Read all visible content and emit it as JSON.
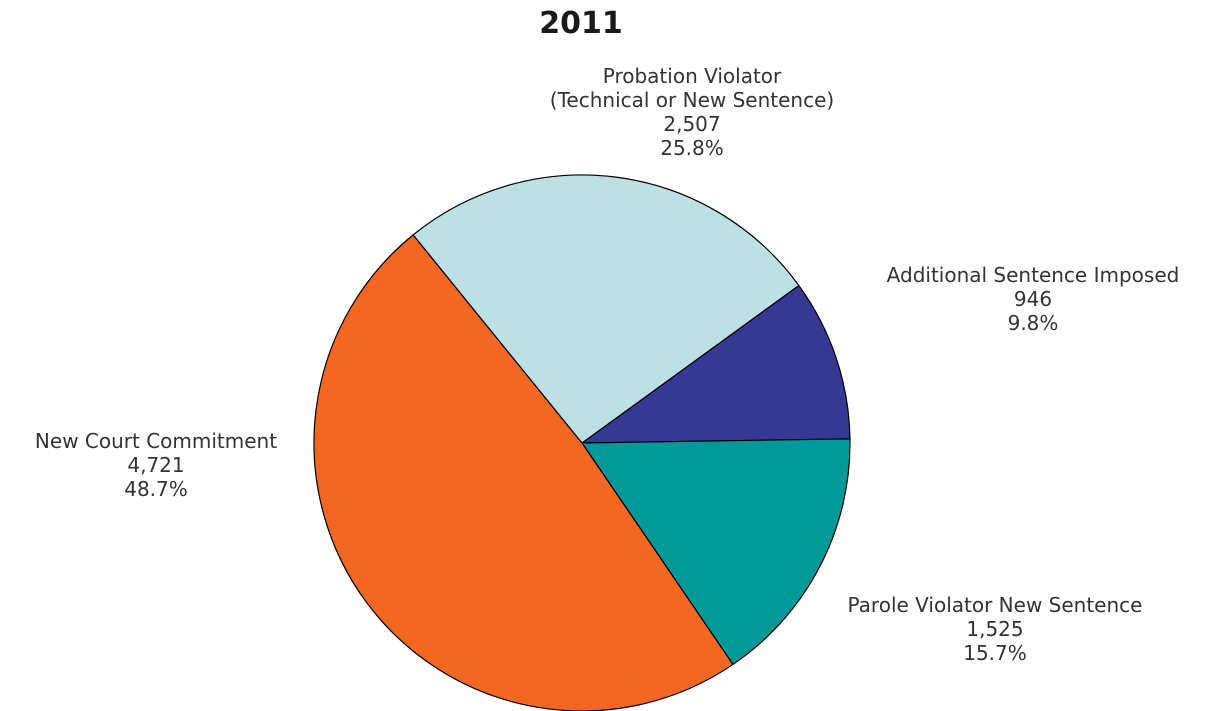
{
  "chart_data": {
    "type": "pie",
    "title": "2011",
    "start_angle_deg": -36,
    "direction": "clockwise",
    "slices": [
      {
        "label_lines": [
          "Additional Sentence Imposed"
        ],
        "value": 946,
        "value_text": "946",
        "percent": 9.8,
        "percent_text": "9.8%",
        "color": "#353993"
      },
      {
        "label_lines": [
          "Parole Violator New Sentence"
        ],
        "value": 1525,
        "value_text": "1,525",
        "percent": 15.7,
        "percent_text": "15.7%",
        "color": "#009999"
      },
      {
        "label_lines": [
          "New Court Commitment"
        ],
        "value": 4721,
        "value_text": "4,721",
        "percent": 48.7,
        "percent_text": "48.7%",
        "color": "#f26722"
      },
      {
        "label_lines": [
          "Probation Violator",
          "(Technical or New Sentence)"
        ],
        "value": 2507,
        "value_text": "2,507",
        "percent": 25.8,
        "percent_text": "25.8%",
        "color": "#bde0e5"
      }
    ]
  }
}
